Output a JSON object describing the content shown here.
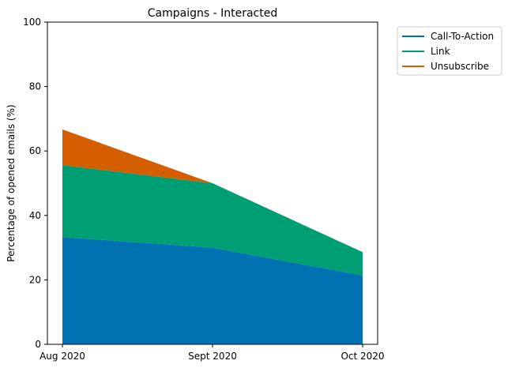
{
  "chart_data": {
    "type": "area",
    "stacked": true,
    "title": "Campaigns - Interacted",
    "xlabel": "",
    "ylabel": "Percentage of opened emails (%)",
    "ylim": [
      0,
      100
    ],
    "yticks": [
      0,
      20,
      40,
      60,
      80,
      100
    ],
    "categories": [
      "Aug 2020",
      "Sept 2020",
      "Oct 2020"
    ],
    "series": [
      {
        "name": "Call-To-Action",
        "color": "#0072b2",
        "values": [
          33.3,
          30.0,
          21.4
        ]
      },
      {
        "name": "Link",
        "color": "#009e73",
        "values": [
          22.3,
          20.0,
          7.2
        ]
      },
      {
        "name": "Unsubscribe",
        "color": "#d55e00",
        "values": [
          11.1,
          0.0,
          0.0
        ]
      }
    ],
    "grid": false,
    "legend": "outside-top-right"
  }
}
